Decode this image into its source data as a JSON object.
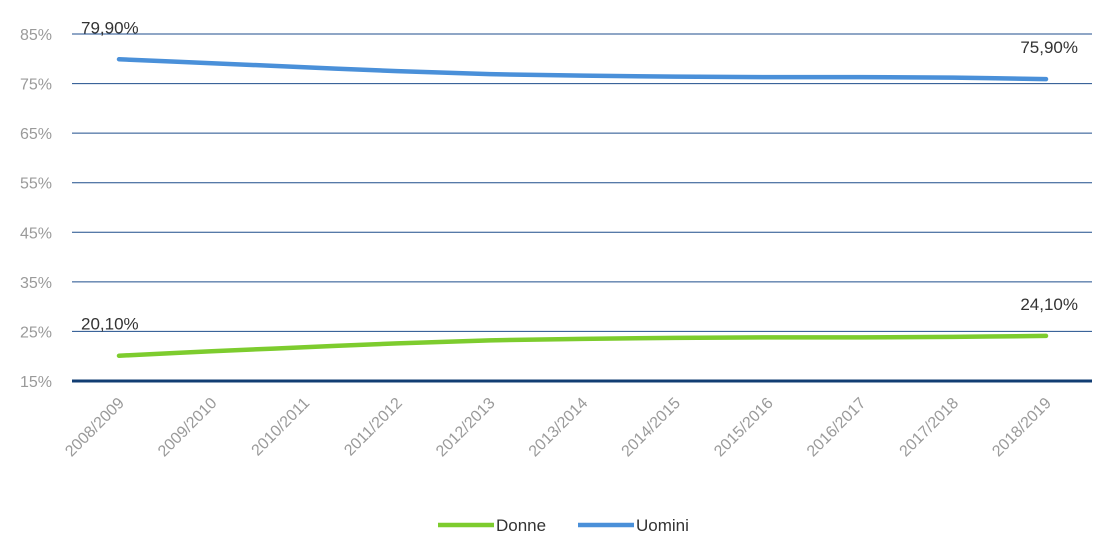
{
  "chart_data": {
    "type": "line",
    "categories": [
      "2008/2009",
      "2009/2010",
      "2010/2011",
      "2011/2012",
      "2012/2013",
      "2013/2014",
      "2014/2015",
      "2015/2016",
      "2016/2017",
      "2017/2018",
      "2018/2019"
    ],
    "series": [
      {
        "name": "Donne",
        "color": "#7dcc2e",
        "values": [
          20.1,
          21.0,
          21.8,
          22.6,
          23.2,
          23.5,
          23.7,
          23.8,
          23.8,
          23.9,
          24.1
        ]
      },
      {
        "name": "Uomini",
        "color": "#4a90d9",
        "values": [
          79.9,
          79.1,
          78.3,
          77.5,
          76.9,
          76.6,
          76.4,
          76.3,
          76.3,
          76.2,
          75.9
        ]
      }
    ],
    "data_labels": [
      {
        "series": "Uomini",
        "index": 0,
        "text": "79,90%"
      },
      {
        "series": "Uomini",
        "index": 10,
        "text": "75,90%"
      },
      {
        "series": "Donne",
        "index": 0,
        "text": "20,10%"
      },
      {
        "series": "Donne",
        "index": 10,
        "text": "24,10%"
      }
    ],
    "yticks": [
      85,
      75,
      65,
      55,
      45,
      35,
      25,
      15
    ],
    "ytick_labels": [
      "85%",
      "75%",
      "65%",
      "55%",
      "45%",
      "35%",
      "25%",
      "15%"
    ],
    "ylim": [
      15,
      85
    ],
    "grid": true,
    "gridline_color": "#1f4e8c",
    "baseline_color": "#123d73",
    "legend_position": "bottom-center",
    "xtick_rotation": -45
  }
}
